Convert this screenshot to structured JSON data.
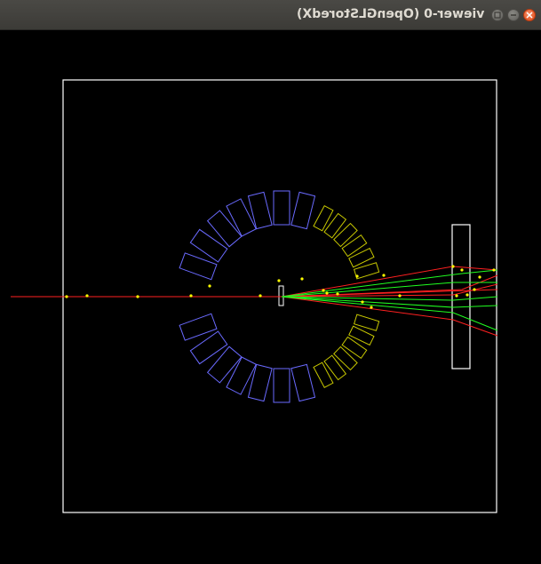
{
  "window": {
    "title": "viewer-0 (OpenGLStoredX)",
    "buttons": [
      "close",
      "minimize",
      "maximize"
    ]
  },
  "scene": {
    "background": "#000000",
    "frame_color": "#ffffff",
    "colors": {
      "blue_modules": "#6a6aff",
      "yellow_modules": "#c8c800",
      "charged_tracks": "#ff2020",
      "neutral_tracks": "#20ff20",
      "hits": "#ffff00",
      "detector_slab": "#ffffff"
    }
  }
}
